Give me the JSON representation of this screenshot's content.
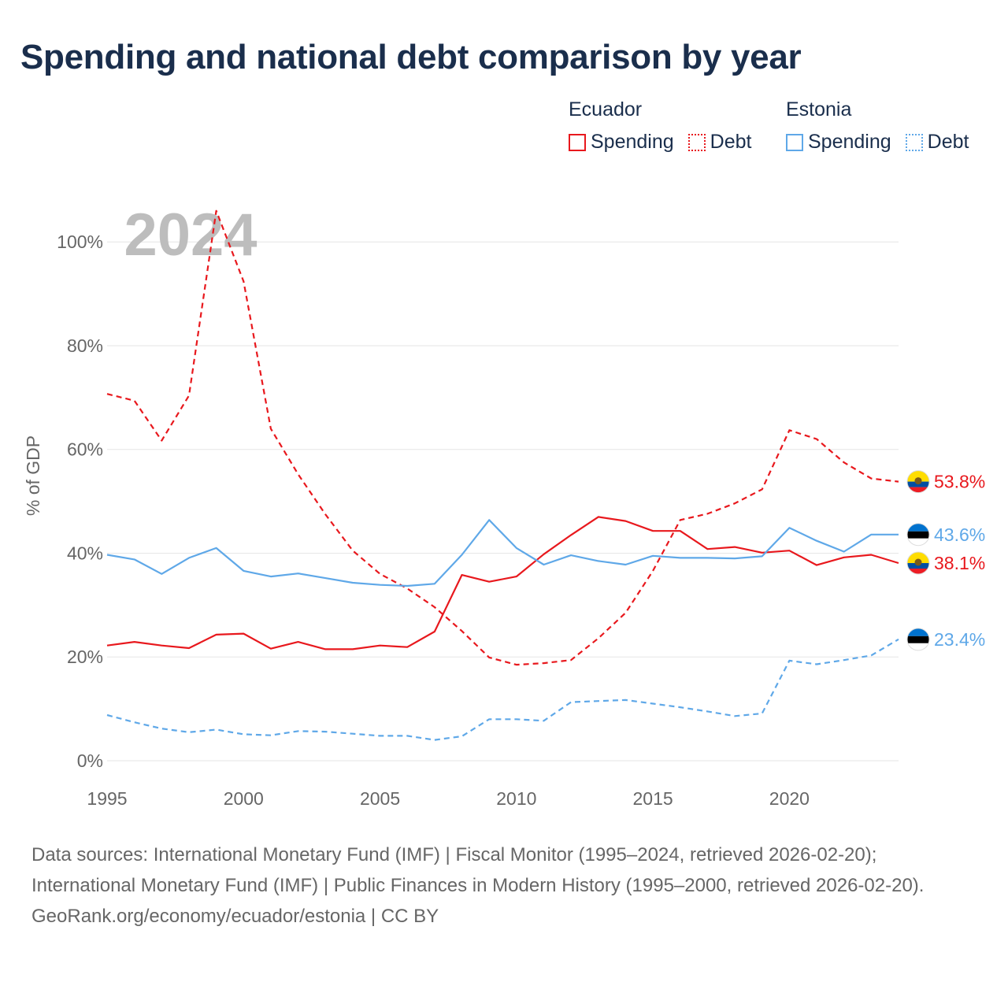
{
  "title": "Spending and national debt comparison by year",
  "legend": {
    "groups": [
      {
        "country": "Ecuador",
        "spending_label": "Spending",
        "debt_label": "Debt",
        "color": "#e8181d"
      },
      {
        "country": "Estonia",
        "spending_label": "Spending",
        "debt_label": "Debt",
        "color": "#5fa8e8"
      }
    ]
  },
  "footer": {
    "sources": "Data sources: International Monetary Fund (IMF) | Fiscal Monitor (1995–2024, retrieved 2026-02-20); International Monetary Fund (IMF) | Public Finances in Modern History (1995–2000, retrieved 2026-02-20).",
    "credit": "GeoRank.org/economy/ecuador/estonia | CC BY"
  },
  "chart_data": {
    "type": "line",
    "title": "Spending and national debt comparison by year",
    "year_watermark": "2024",
    "ylabel": "% of GDP",
    "xlabel": "",
    "xlim": [
      1995,
      2024
    ],
    "ylim": [
      0,
      108
    ],
    "x_ticks": [
      1995,
      2000,
      2005,
      2010,
      2015,
      2020
    ],
    "y_ticks": [
      0,
      20,
      40,
      60,
      80,
      100
    ],
    "y_tick_labels": [
      "0%",
      "20%",
      "40%",
      "60%",
      "80%",
      "100%"
    ],
    "grid": true,
    "x": [
      1995,
      1996,
      1997,
      1998,
      1999,
      2000,
      2001,
      2002,
      2003,
      2004,
      2005,
      2006,
      2007,
      2008,
      2009,
      2010,
      2011,
      2012,
      2013,
      2014,
      2015,
      2016,
      2017,
      2018,
      2019,
      2020,
      2021,
      2022,
      2023,
      2024
    ],
    "series": [
      {
        "name": "Ecuador Spending",
        "country": "Ecuador",
        "kind": "spending",
        "color": "#e8181d",
        "dash": "solid",
        "end_label": "38.1%",
        "values": [
          22.2,
          22.9,
          22.2,
          21.7,
          24.3,
          24.5,
          21.6,
          22.9,
          21.5,
          21.5,
          22.2,
          21.9,
          24.9,
          35.8,
          34.5,
          35.5,
          39.8,
          43.5,
          47.0,
          46.2,
          44.3,
          44.3,
          40.8,
          41.2,
          40.1,
          40.5,
          37.7,
          39.2,
          39.7,
          38.1
        ]
      },
      {
        "name": "Ecuador Debt",
        "country": "Ecuador",
        "kind": "debt",
        "color": "#e8181d",
        "dash": "dashed",
        "end_label": "53.8%",
        "values": [
          70.7,
          69.4,
          61.7,
          70.4,
          106.0,
          92.4,
          64.0,
          55.2,
          47.5,
          40.5,
          36.0,
          33.2,
          29.6,
          25.0,
          19.9,
          18.5,
          18.8,
          19.4,
          23.6,
          28.5,
          36.6,
          46.4,
          47.6,
          49.6,
          52.3,
          63.7,
          62.0,
          57.5,
          54.4,
          53.8
        ]
      },
      {
        "name": "Estonia Spending",
        "country": "Estonia",
        "kind": "spending",
        "color": "#5fa8e8",
        "dash": "solid",
        "end_label": "43.6%",
        "values": [
          39.7,
          38.8,
          36.0,
          39.1,
          41.0,
          36.6,
          35.5,
          36.1,
          35.2,
          34.3,
          33.9,
          33.7,
          34.1,
          39.7,
          46.4,
          41.0,
          37.8,
          39.6,
          38.5,
          37.8,
          39.5,
          39.1,
          39.1,
          39.0,
          39.4,
          44.9,
          42.4,
          40.3,
          43.6,
          43.6
        ]
      },
      {
        "name": "Estonia Debt",
        "country": "Estonia",
        "kind": "debt",
        "color": "#5fa8e8",
        "dash": "dashed",
        "end_label": "23.4%",
        "values": [
          8.8,
          7.4,
          6.2,
          5.5,
          6.0,
          5.1,
          4.9,
          5.7,
          5.6,
          5.2,
          4.8,
          4.8,
          4.0,
          4.7,
          8.0,
          8.0,
          7.7,
          11.3,
          11.5,
          11.7,
          11.0,
          10.3,
          9.5,
          8.6,
          9.1,
          19.3,
          18.6,
          19.4,
          20.3,
          23.4
        ]
      }
    ]
  }
}
